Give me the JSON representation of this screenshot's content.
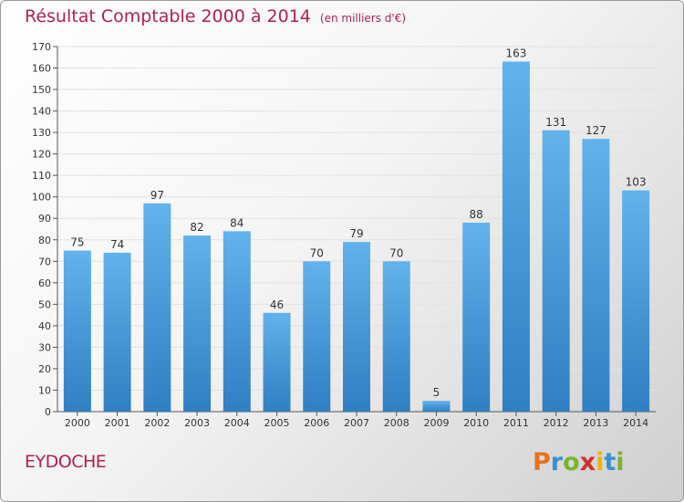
{
  "header": {
    "title": "Résultat Comptable 2000 à 2014",
    "subtitle": "(en milliers d'€)"
  },
  "footer": {
    "place": "EYDOCHE",
    "logo_letters": [
      "P",
      "r",
      "o",
      "x",
      "i",
      "t",
      "i"
    ]
  },
  "colors": {
    "bar": "#3d93d6",
    "bar_light": "#62b2ec",
    "title": "#b0214d",
    "grid": "#e2e2e2"
  },
  "chart_data": {
    "type": "bar",
    "title": "Résultat Comptable 2000 à 2014",
    "subtitle": "(en milliers d'€)",
    "categories": [
      "2000",
      "2001",
      "2002",
      "2003",
      "2004",
      "2005",
      "2006",
      "2007",
      "2008",
      "2009",
      "2010",
      "2011",
      "2012",
      "2013",
      "2014"
    ],
    "values": [
      75,
      74,
      97,
      82,
      84,
      46,
      70,
      79,
      70,
      5,
      88,
      163,
      131,
      127,
      103
    ],
    "ylim": [
      0,
      170
    ],
    "ytick_step": 10,
    "grid": true,
    "legend": "none"
  }
}
